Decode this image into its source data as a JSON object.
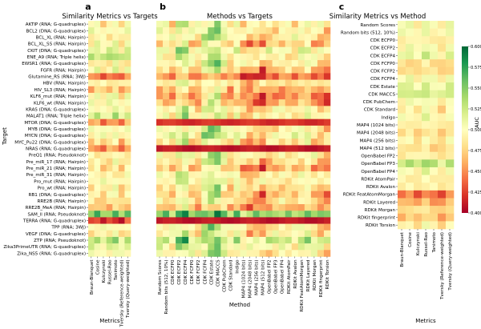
{
  "panel_letters": [
    "a",
    "b",
    "c"
  ],
  "colorbar": {
    "label": "AUC",
    "min": 0.4,
    "max": 0.6,
    "ticks": [
      "0.400",
      "0.425",
      "0.450",
      "0.475",
      "0.500",
      "0.525",
      "0.550",
      "0.575",
      "0.600"
    ],
    "stops": [
      "#a50026",
      "#d73027",
      "#f46d43",
      "#fdae61",
      "#fee08b",
      "#ffffbf",
      "#d9ef8b",
      "#a6d96a",
      "#66bd63",
      "#1a9850",
      "#006837"
    ]
  },
  "chart_data": [
    {
      "type": "heatmap",
      "panel": "a",
      "title": "Similarity Metrics vs Targets",
      "xlabel": "Metrics",
      "ylabel": "Target",
      "x_categories": [
        "Braun-Blanquet",
        "Cosine",
        "Kulczynski",
        "Russel-Rao",
        "Tanimoto",
        "Tversky (Reference-weighted)",
        "Tversky (Query-weighted)"
      ],
      "y_categories": [
        "AKTIP (RNA; G-quadruplex)",
        "BCL2 (DNA; G-quadruplex)",
        "BCL_XL (RNA; Hairpin)",
        "BCL_XL_SS (RNA; Hairpin)",
        "CKIT (DNA; G-quadruplex)",
        "ENE_A9 (RNA; Triple helix)",
        "EWSR1 (RNA; G-quadruplex)",
        "FGFR (RNA; Hairpin)",
        "Glutamine_RS (RNA; 3WJ)",
        "HBV (RNA; Hairpin)",
        "HIV_SL3 (RNA; Hairpin)",
        "KLF6_mut (RNA; Hairpin)",
        "KLF6_wt (RNA; Hairpin)",
        "KRAS (DNA; G-quadruplex)",
        "MALAT1 (RNA; Triple helix)",
        "MTOR (DNA; G-quadruplex)",
        "MYB (DNA; G-quadruplex)",
        "MYCN (DNA; G-quadruplex)",
        "MYC_Pu22 (DNA; G-quadruplex)",
        "NRAS (RNA; G-quadruplex)",
        "PreQ1 (RNA; Pseudoknot)",
        "Pre_miR_17 (RNA; Hairpin)",
        "Pre_miR_21 (RNA; Hairpin)",
        "Pre_miR_31 (RNA; Hairpin)",
        "Pro_mut (RNA; Hairpin)",
        "Pro_wt (RNA; Hairpin)",
        "RB1 (DNA; G-quadruplex)",
        "RRE2B (RNA; Hairpin)",
        "RRE2B_MeA (RNA; Hairpin)",
        "SAM_ll (RNA; Pseudoknot)",
        "TERRA (RNA; G-quadruplex)",
        "TPP (RNA; 3WJ)",
        "VEGF (DNA; G-quadruplex)",
        "ZTP (RNA; Pseudoknot)",
        "Zika3PrimeUTR (RNA; G-quadruplex)",
        "Zika_NS5 (RNA; G-quadruplex)"
      ],
      "row_values": [
        0.49,
        0.5,
        0.49,
        0.5,
        0.51,
        0.53,
        0.49,
        0.5,
        0.44,
        0.49,
        0.47,
        0.5,
        0.5,
        0.5,
        0.52,
        0.45,
        0.5,
        0.5,
        0.48,
        0.45,
        0.49,
        0.49,
        0.48,
        0.49,
        0.5,
        0.49,
        0.49,
        0.48,
        0.47,
        0.55,
        0.42,
        0.5,
        0.49,
        0.53,
        0.51,
        0.5
      ],
      "col_offsets": [
        0.0,
        0.005,
        -0.005,
        0.0,
        0.01,
        -0.01,
        0.005
      ],
      "value_range": [
        0.4,
        0.6
      ]
    },
    {
      "type": "heatmap",
      "panel": "b",
      "title": "Methods vs Targets",
      "xlabel": "Method",
      "ylabel": "",
      "x_categories": [
        "Random Scores",
        "Random bits (512, 10%)",
        "CDK ECFP0",
        "CDK ECFP2",
        "CDK ECFP4",
        "CDK FCFP0",
        "CDK FCFP2",
        "CDK FCFP4",
        "CDK Estate",
        "CDK MACCS",
        "CDK PubChem",
        "CDK Standard",
        "Indigo",
        "MAP4 (1024 bits)",
        "MAP4 (2048 bits)",
        "MAP4 (256 bits)",
        "MAP4 (512 bits)",
        "OpenBabel FP2",
        "OpenBabel FP3",
        "OpenBabel FP4",
        "RDKit AtomPair",
        "RDKit Avalon",
        "RDKit FeatAtomMorgan",
        "RDKit Layered",
        "RDKit Morgan",
        "RDKit fingerprint",
        "RDKit Torsion"
      ],
      "y_categories_ref": "same as panel a",
      "row_values": [
        0.5,
        0.5,
        0.5,
        0.48,
        0.51,
        0.5,
        0.5,
        0.48,
        0.45,
        0.49,
        0.47,
        0.46,
        0.47,
        0.5,
        0.5,
        0.42,
        0.5,
        0.51,
        0.49,
        0.41,
        0.5,
        0.49,
        0.47,
        0.5,
        0.5,
        0.49,
        0.48,
        0.49,
        0.47,
        0.55,
        0.41,
        0.5,
        0.5,
        0.53,
        0.51,
        0.5
      ],
      "column_pattern": [
        0.0,
        0.0,
        -0.02,
        0.03,
        0.04,
        -0.01,
        -0.02,
        0.03,
        0.05,
        0.06,
        0.01,
        -0.02,
        0.01,
        -0.03,
        -0.04,
        -0.03,
        -0.05,
        -0.02,
        -0.02,
        -0.01,
        -0.01,
        -0.02,
        0.0,
        0.01,
        -0.02,
        -0.03,
        -0.04
      ],
      "value_range": [
        0.4,
        0.6
      ]
    },
    {
      "type": "heatmap",
      "panel": "c",
      "title": "Similarity Metrics vs Method",
      "xlabel": "Metrics",
      "ylabel": "Method",
      "x_categories": [
        "Braun-Blanquet",
        "Cosine",
        "Kulczynski",
        "Russel-Rao",
        "Tanimoto",
        "Tversky (Reference-weighted)",
        "Tversky (Query-weighted)"
      ],
      "y_categories_ref": "same as panel b x categories",
      "row_values": [
        0.5,
        0.5,
        0.49,
        0.5,
        0.51,
        0.48,
        0.48,
        0.5,
        0.51,
        0.52,
        0.5,
        0.49,
        0.5,
        0.49,
        0.48,
        0.49,
        0.48,
        0.49,
        0.53,
        0.5,
        0.49,
        0.49,
        0.44,
        0.46,
        0.48,
        0.47,
        0.49
      ],
      "col_offsets": [
        0.0,
        0.005,
        -0.005,
        0.01,
        0.0,
        -0.01,
        0.005
      ],
      "value_range": [
        0.4,
        0.6
      ]
    }
  ]
}
